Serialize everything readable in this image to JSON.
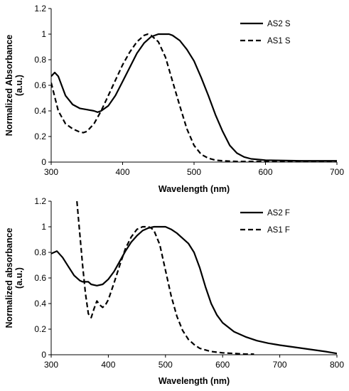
{
  "chart_data": [
    {
      "type": "line",
      "xlabel": "Wavelength (nm)",
      "ylabel_line1": "Normalized Absorbance",
      "ylabel_line2": "(a.u.)",
      "xlim": [
        300,
        700
      ],
      "ylim": [
        0,
        1.2
      ],
      "xticks": [
        300,
        400,
        500,
        600,
        700
      ],
      "yticks": [
        0,
        0.2,
        0.4,
        0.6,
        0.8,
        1,
        1.2
      ],
      "grid": false,
      "legend": "top-right",
      "series": [
        {
          "name": "AS2 S",
          "style": "solid",
          "x": [
            300,
            305,
            310,
            320,
            330,
            340,
            350,
            360,
            365,
            370,
            380,
            390,
            400,
            410,
            420,
            430,
            440,
            450,
            460,
            465,
            470,
            480,
            490,
            500,
            510,
            520,
            530,
            540,
            550,
            560,
            570,
            580,
            590,
            600,
            650,
            700
          ],
          "y": [
            0.67,
            0.7,
            0.67,
            0.52,
            0.45,
            0.42,
            0.41,
            0.4,
            0.39,
            0.4,
            0.44,
            0.52,
            0.63,
            0.74,
            0.85,
            0.93,
            0.98,
            1.0,
            1.0,
            1.0,
            0.99,
            0.95,
            0.88,
            0.79,
            0.66,
            0.52,
            0.37,
            0.24,
            0.13,
            0.07,
            0.04,
            0.025,
            0.02,
            0.015,
            0.01,
            0.01
          ]
        },
        {
          "name": "AS1 S",
          "style": "dashed",
          "x": [
            300,
            310,
            320,
            330,
            340,
            345,
            350,
            360,
            370,
            380,
            390,
            400,
            410,
            420,
            430,
            435,
            440,
            450,
            460,
            470,
            480,
            490,
            500,
            510,
            520,
            530,
            540,
            560,
            600,
            650,
            700
          ],
          "y": [
            0.62,
            0.4,
            0.3,
            0.26,
            0.235,
            0.23,
            0.24,
            0.3,
            0.4,
            0.52,
            0.64,
            0.76,
            0.86,
            0.94,
            0.99,
            1.0,
            0.99,
            0.94,
            0.82,
            0.63,
            0.44,
            0.26,
            0.13,
            0.06,
            0.03,
            0.015,
            0.01,
            0.005,
            0.005,
            0.005,
            0.005
          ]
        }
      ]
    },
    {
      "type": "line",
      "xlabel": "Wavelength (nm)",
      "ylabel_line1": "Normalized absorbance",
      "ylabel_line2": "(a.u.)",
      "xlim": [
        300,
        800
      ],
      "ylim": [
        0,
        1.2
      ],
      "xticks": [
        300,
        400,
        500,
        600,
        700,
        800
      ],
      "yticks": [
        0,
        0.2,
        0.4,
        0.6,
        0.8,
        1,
        1.2
      ],
      "grid": false,
      "legend": "top-right",
      "series": [
        {
          "name": "AS2 F",
          "style": "solid",
          "x": [
            300,
            310,
            320,
            330,
            340,
            350,
            355,
            360,
            365,
            370,
            380,
            390,
            400,
            410,
            420,
            430,
            440,
            450,
            460,
            470,
            480,
            490,
            500,
            510,
            520,
            530,
            540,
            550,
            560,
            570,
            580,
            590,
            600,
            620,
            640,
            660,
            680,
            700,
            740,
            780,
            800
          ],
          "y": [
            0.79,
            0.81,
            0.76,
            0.69,
            0.62,
            0.58,
            0.57,
            0.57,
            0.57,
            0.55,
            0.54,
            0.55,
            0.59,
            0.65,
            0.73,
            0.81,
            0.88,
            0.93,
            0.97,
            0.99,
            1.0,
            1.0,
            1.0,
            0.98,
            0.95,
            0.91,
            0.87,
            0.8,
            0.68,
            0.53,
            0.4,
            0.31,
            0.25,
            0.18,
            0.14,
            0.11,
            0.09,
            0.075,
            0.05,
            0.025,
            0.01
          ]
        },
        {
          "name": "AS1 F",
          "style": "dashed",
          "x": [
            345,
            350,
            355,
            360,
            365,
            370,
            375,
            380,
            385,
            390,
            395,
            400,
            410,
            420,
            430,
            440,
            450,
            460,
            465,
            470,
            475,
            480,
            490,
            500,
            510,
            520,
            530,
            540,
            550,
            560,
            580,
            600,
            620,
            640,
            655
          ],
          "y": [
            1.2,
            0.95,
            0.7,
            0.48,
            0.32,
            0.29,
            0.36,
            0.42,
            0.39,
            0.37,
            0.39,
            0.43,
            0.56,
            0.7,
            0.83,
            0.92,
            0.98,
            1.0,
            1.0,
            1.0,
            0.99,
            0.97,
            0.86,
            0.66,
            0.46,
            0.3,
            0.19,
            0.12,
            0.08,
            0.05,
            0.025,
            0.015,
            0.01,
            0.005,
            0.005
          ]
        }
      ]
    }
  ]
}
